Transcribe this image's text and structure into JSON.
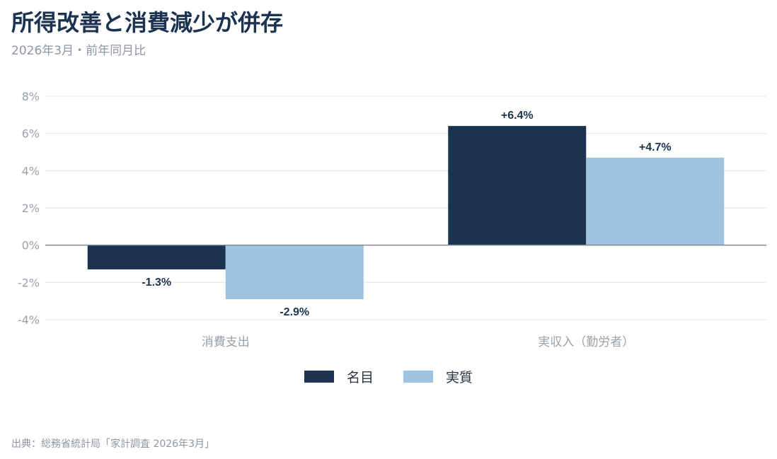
{
  "title": "所得改善と消費減少が併存",
  "subtitle": "2026年3月・前年同月比",
  "source": "出典：総務省統計局「家計調査 2026年3月」",
  "colors": {
    "nominal": "#1b3350",
    "real": "#9fc2de",
    "grid": "#e8eaec",
    "zero_line": "#7f8a95"
  },
  "chart_data": {
    "type": "bar",
    "categories": [
      "消費支出",
      "実収入（勤労者）"
    ],
    "series": [
      {
        "name": "名目",
        "values": [
          -1.3,
          6.4
        ],
        "labels": [
          "-1.3%",
          "+6.4%"
        ]
      },
      {
        "name": "実質",
        "values": [
          -2.9,
          4.7
        ],
        "labels": [
          "-2.9%",
          "+4.7%"
        ]
      }
    ],
    "ylim": [
      -4,
      8
    ],
    "yticks": [
      8,
      6,
      4,
      2,
      0,
      -2,
      -4
    ],
    "ytick_labels": [
      "8%",
      "6%",
      "4%",
      "2%",
      "0%",
      "-2%",
      "-4%"
    ],
    "grid": true,
    "legend_position": "bottom"
  }
}
